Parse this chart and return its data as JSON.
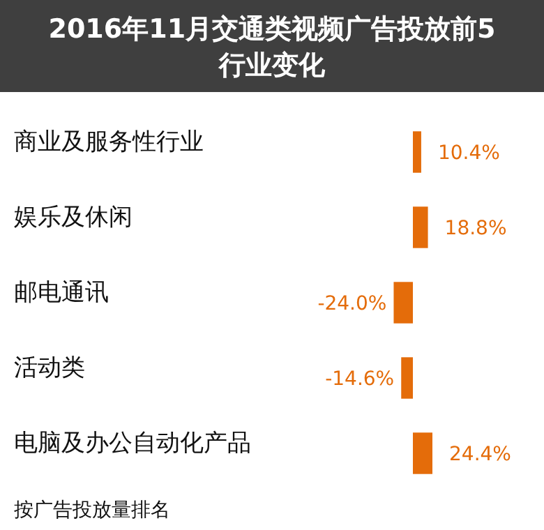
{
  "chart_data": {
    "type": "bar",
    "orientation": "horizontal",
    "title": "2016年11月交通类视频广告投放前5行业变化",
    "categories": [
      "商业及服务性行业",
      "娱乐及休闲",
      "邮电通讯",
      "活动类",
      "电脑及办公自动化产品"
    ],
    "values": [
      10.4,
      18.8,
      -24.0,
      -14.6,
      24.4
    ],
    "value_labels": [
      "10.4%",
      "18.8%",
      "-24.0%",
      "-14.6%",
      "24.4%"
    ],
    "color": "#e46c0a",
    "annotations": [
      "按广告投放量排名"
    ]
  }
}
